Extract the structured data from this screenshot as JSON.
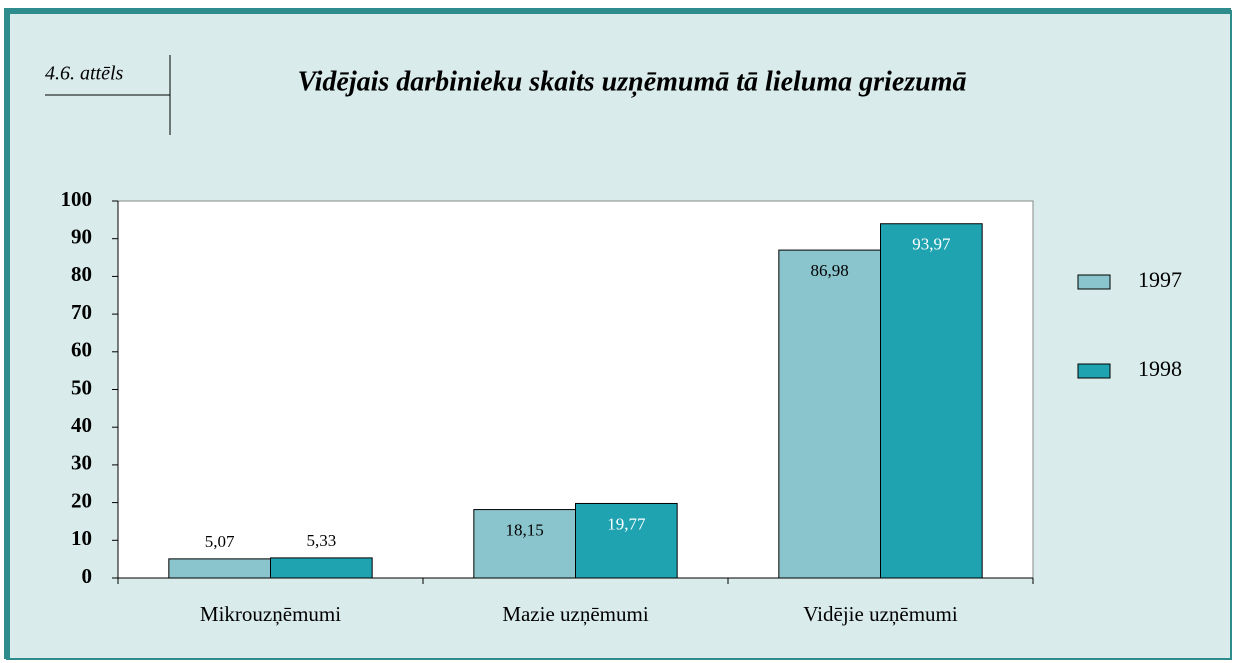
{
  "chart_data": {
    "type": "bar",
    "title": "Vidējais darbinieku skaits uzņēmumā tā lieluma griezumā",
    "figure_label": "4.6. attēls",
    "categories": [
      "Mikrouzņēmumi",
      "Mazie uzņēmumi",
      "Vidējie uzņēmumi"
    ],
    "series": [
      {
        "name": "1997",
        "color": "#8ac4cc",
        "values": [
          5.07,
          18.15,
          86.98
        ],
        "value_labels": [
          "5,07",
          "18,15",
          "86,98"
        ]
      },
      {
        "name": "1998",
        "color": "#1fa3b0",
        "values": [
          5.33,
          19.77,
          93.97
        ],
        "value_labels": [
          "5,33",
          "19,77",
          "93,97"
        ]
      }
    ],
    "ylim": [
      0,
      100
    ],
    "yticks": [
      0,
      10,
      20,
      30,
      40,
      50,
      60,
      70,
      80,
      90,
      100
    ],
    "legend": "right"
  }
}
